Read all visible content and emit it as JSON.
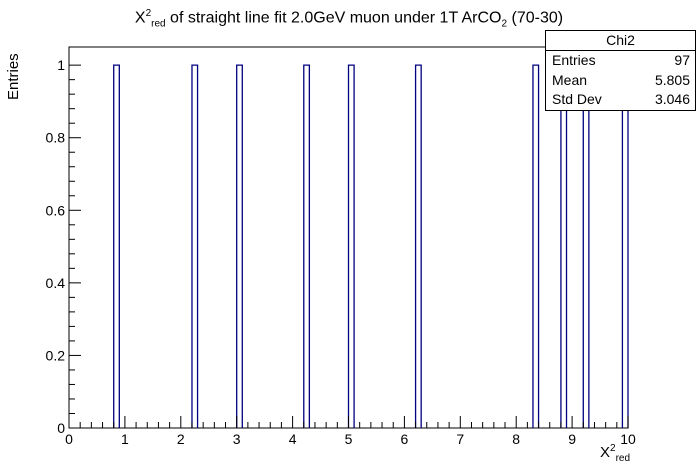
{
  "title_main": "X",
  "title_sup": "2",
  "title_sub": "red",
  "title_rest": " of straight line fit 2.0GeV muon under 1T ArCO",
  "title_sub2": "2",
  "title_tail": " (70-30)",
  "xlabel_main": "X",
  "xlabel_sup": "2",
  "xlabel_sub": "red",
  "ylabel": "Entries",
  "stats": {
    "name": "Chi2",
    "rows": [
      {
        "label": "Entries",
        "value": "97"
      },
      {
        "label": "Mean",
        "value": "5.805"
      },
      {
        "label": "Std Dev",
        "value": "3.046"
      }
    ]
  },
  "chart_data": {
    "type": "bar",
    "histogram": true,
    "xlim": [
      0,
      10
    ],
    "ylim": [
      0,
      1.05
    ],
    "bin_width": 0.1,
    "x_ticks": [
      "0",
      "1",
      "2",
      "3",
      "4",
      "5",
      "6",
      "7",
      "8",
      "9",
      "10"
    ],
    "y_ticks": [
      "0",
      "0.2",
      "0.4",
      "0.6",
      "0.8",
      "1"
    ],
    "bins": [
      {
        "x": 0.8,
        "value": 1
      },
      {
        "x": 2.2,
        "value": 1
      },
      {
        "x": 3.0,
        "value": 1
      },
      {
        "x": 4.2,
        "value": 1
      },
      {
        "x": 5.0,
        "value": 1
      },
      {
        "x": 6.2,
        "value": 1
      },
      {
        "x": 8.3,
        "value": 1
      },
      {
        "x": 8.8,
        "value": 1
      },
      {
        "x": 9.2,
        "value": 1
      },
      {
        "x": 9.9,
        "value": 1
      }
    ],
    "line_color": "#000080"
  }
}
